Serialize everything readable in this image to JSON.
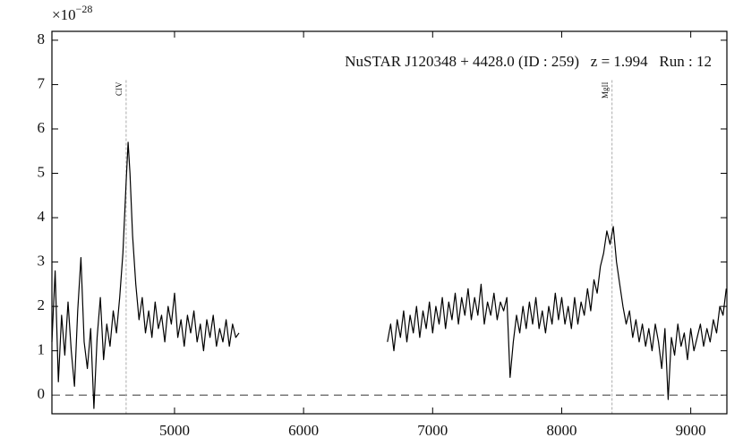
{
  "chart_data": {
    "type": "line",
    "annotation": "NuSTAR J120348 + 4428.0 (ID : 259)   z = 1.994   Run : 12",
    "y_scale_label": {
      "base": "×10",
      "exponent": "−28"
    },
    "xlim": [
      4050,
      9280
    ],
    "ylim": [
      -0.42,
      8.2
    ],
    "xticks": [
      5000,
      6000,
      7000,
      8000,
      9000
    ],
    "yticks": [
      0,
      1,
      2,
      3,
      4,
      5,
      6,
      7,
      8
    ],
    "hline": 0,
    "lines": [
      {
        "label": "CIV",
        "x": 4625
      },
      {
        "label": "MgII",
        "x": 8390
      }
    ],
    "series": [
      {
        "color": "#000000",
        "x": [
          4050,
          4075,
          4100,
          4125,
          4150,
          4175,
          4200,
          4225,
          4250,
          4275,
          4300,
          4325,
          4350,
          4375,
          4400,
          4425,
          4450,
          4475,
          4500,
          4525,
          4550,
          4575,
          4600,
          4625,
          4640,
          4655,
          4675,
          4700,
          4725,
          4750,
          4775,
          4800,
          4825,
          4850,
          4875,
          4900,
          4925,
          4950,
          4975,
          5000,
          5025,
          5050,
          5075,
          5100,
          5125,
          5150,
          5175,
          5200,
          5225,
          5250,
          5275,
          5300,
          5325,
          5350,
          5375,
          5400,
          5425,
          5450,
          5475,
          5500,
          5525,
          6650,
          6675,
          6700,
          6725,
          6750,
          6775,
          6800,
          6825,
          6850,
          6875,
          6900,
          6925,
          6950,
          6975,
          7000,
          7025,
          7050,
          7075,
          7100,
          7125,
          7150,
          7175,
          7200,
          7225,
          7250,
          7275,
          7300,
          7325,
          7350,
          7375,
          7400,
          7425,
          7450,
          7475,
          7500,
          7525,
          7550,
          7575,
          7600,
          7625,
          7650,
          7675,
          7700,
          7725,
          7750,
          7775,
          7800,
          7825,
          7850,
          7875,
          7900,
          7925,
          7950,
          7975,
          8000,
          8025,
          8050,
          8075,
          8100,
          8125,
          8150,
          8175,
          8200,
          8225,
          8250,
          8275,
          8300,
          8325,
          8350,
          8375,
          8400,
          8425,
          8450,
          8475,
          8500,
          8525,
          8550,
          8575,
          8600,
          8625,
          8650,
          8675,
          8700,
          8725,
          8750,
          8775,
          8800,
          8825,
          8850,
          8875,
          8900,
          8925,
          8950,
          8975,
          9000,
          9025,
          9050,
          9075,
          9100,
          9125,
          9150,
          9175,
          9200,
          9225,
          9250,
          9275
        ],
        "values": [
          1.2,
          2.8,
          0.3,
          1.8,
          0.9,
          2.1,
          1.0,
          0.2,
          1.9,
          3.1,
          1.2,
          0.6,
          1.5,
          -0.3,
          1.3,
          2.2,
          0.8,
          1.6,
          1.1,
          1.9,
          1.4,
          2.2,
          3.2,
          4.8,
          5.7,
          5.0,
          3.6,
          2.5,
          1.7,
          2.2,
          1.4,
          1.9,
          1.3,
          2.1,
          1.5,
          1.8,
          1.2,
          2.0,
          1.6,
          2.3,
          1.3,
          1.7,
          1.1,
          1.8,
          1.4,
          1.9,
          1.2,
          1.6,
          1.0,
          1.7,
          1.3,
          1.8,
          1.1,
          1.5,
          1.2,
          1.7,
          1.1,
          1.6,
          1.3,
          1.4,
          null,
          1.2,
          1.6,
          1.0,
          1.7,
          1.3,
          1.9,
          1.2,
          1.8,
          1.4,
          2.0,
          1.3,
          1.9,
          1.5,
          2.1,
          1.4,
          2.0,
          1.6,
          2.2,
          1.5,
          2.1,
          1.7,
          2.3,
          1.6,
          2.2,
          1.8,
          2.4,
          1.7,
          2.2,
          1.8,
          2.5,
          1.6,
          2.1,
          1.8,
          2.3,
          1.7,
          2.1,
          1.9,
          2.2,
          0.4,
          1.2,
          1.8,
          1.4,
          2.0,
          1.5,
          2.1,
          1.6,
          2.2,
          1.5,
          1.9,
          1.4,
          2.0,
          1.6,
          2.3,
          1.7,
          2.2,
          1.6,
          2.0,
          1.5,
          2.2,
          1.6,
          2.1,
          1.8,
          2.4,
          1.9,
          2.6,
          2.3,
          2.9,
          3.2,
          3.7,
          3.4,
          3.8,
          3.0,
          2.5,
          2.0,
          1.6,
          1.9,
          1.3,
          1.7,
          1.2,
          1.6,
          1.1,
          1.5,
          1.0,
          1.6,
          1.2,
          0.6,
          1.5,
          -0.1,
          1.3,
          0.9,
          1.6,
          1.1,
          1.4,
          0.8,
          1.5,
          1.0,
          1.3,
          1.6,
          1.1,
          1.5,
          1.2,
          1.7,
          1.4,
          2.0,
          1.8,
          2.4
        ]
      }
    ]
  }
}
